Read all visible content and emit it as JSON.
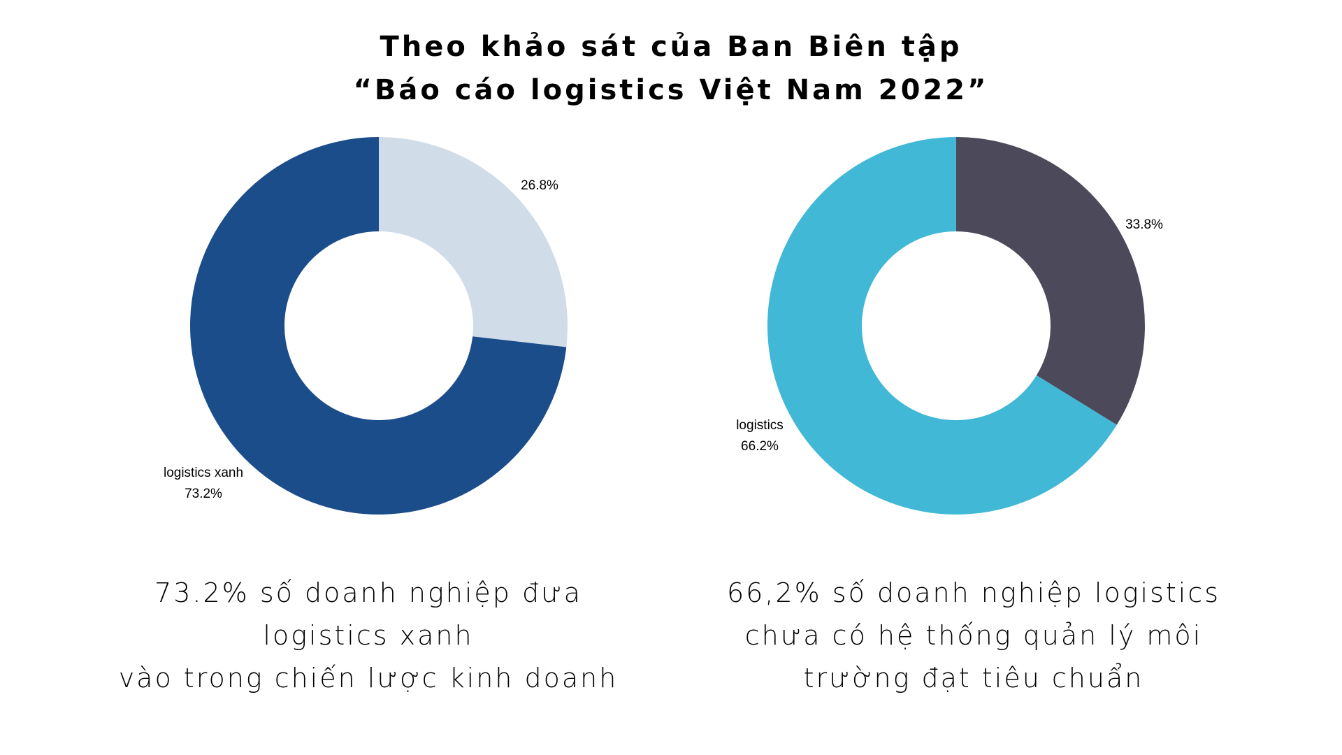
{
  "title": {
    "line1": "Theo khảo sát của Ban Biên tập",
    "line2": "“Báo cáo logistics Việt Nam 2022”"
  },
  "chart_data": [
    {
      "type": "pie",
      "donut": true,
      "start": "top",
      "direction": "clockwise",
      "slices": [
        {
          "label": "",
          "value": 26.8,
          "value_label": "26.8%",
          "color": "#d0dde8"
        },
        {
          "label": "logistics xanh",
          "value": 73.2,
          "value_label": "73.2%",
          "color": "#1c4d8b"
        }
      ],
      "caption": [
        "73.2% số doanh nghiệp đưa",
        "logistics xanh",
        "vào trong chiến lược kinh doanh"
      ]
    },
    {
      "type": "pie",
      "donut": true,
      "start": "top",
      "direction": "clockwise",
      "slices": [
        {
          "label": "",
          "value": 33.8,
          "value_label": "33.8%",
          "color": "#4c4a5a"
        },
        {
          "label": "logistics",
          "value": 66.2,
          "value_label": "66.2%",
          "color": "#42b8d7"
        }
      ],
      "caption": [
        "66,2% số doanh nghiệp logistics",
        "chưa có hệ thống quản lý môi",
        "trường đạt tiêu chuẩn"
      ]
    }
  ]
}
